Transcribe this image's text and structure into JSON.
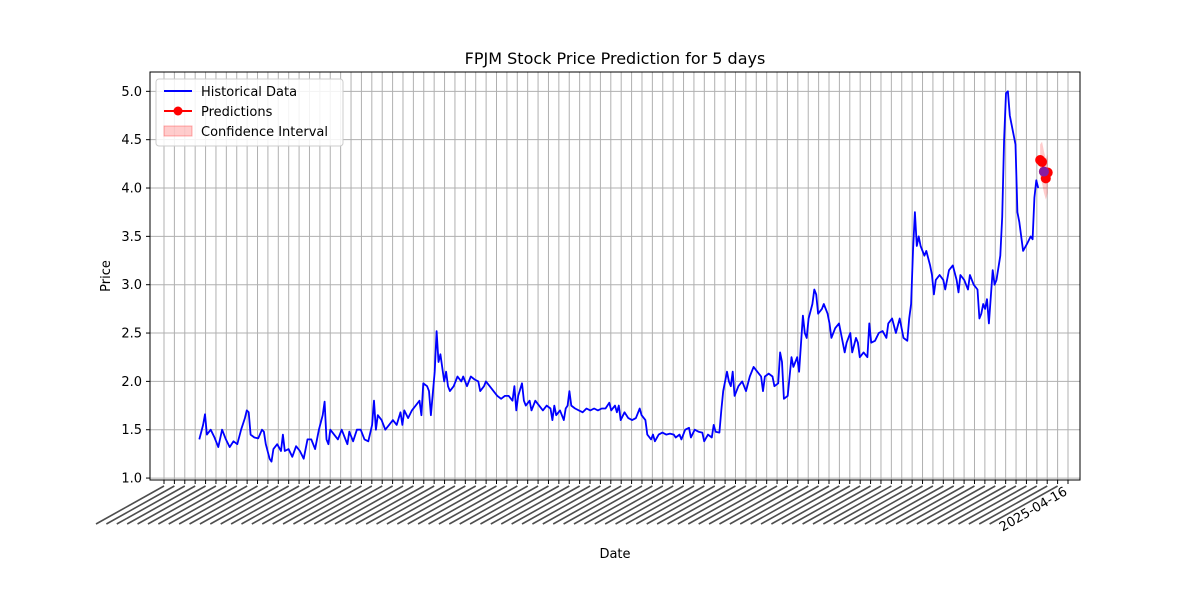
{
  "chart_data": {
    "type": "line",
    "title": "FPJM Stock Price Prediction for 5 days",
    "xlabel": "Date",
    "ylabel": "Price",
    "ylim": [
      0.98,
      5.2
    ],
    "yticks": [
      1.0,
      1.5,
      2.0,
      2.5,
      3.0,
      3.5,
      4.0,
      4.5,
      5.0
    ],
    "ytick_labels": [
      "1.0",
      "1.5",
      "2.0",
      "2.5",
      "3.0",
      "3.5",
      "4.0",
      "4.5",
      "5.0"
    ],
    "x_tick_count": 88,
    "x_tick_labels_visible": [
      "2025-04-16"
    ],
    "grid": true,
    "legend_position": "upper-left",
    "legend": [
      {
        "label": "Historical Data",
        "kind": "line",
        "color": "#0000ff"
      },
      {
        "label": "Predictions",
        "kind": "line-marker",
        "color": "#ff0000"
      },
      {
        "label": "Confidence Interval",
        "kind": "band",
        "color": "#ff0000"
      }
    ],
    "series": [
      {
        "name": "Historical Data",
        "color": "#0000ff",
        "values": [
          [
            0,
            1.4
          ],
          [
            2,
            1.55
          ],
          [
            3,
            1.66
          ],
          [
            4,
            1.45
          ],
          [
            6,
            1.5
          ],
          [
            8,
            1.42
          ],
          [
            10,
            1.32
          ],
          [
            12,
            1.5
          ],
          [
            14,
            1.4
          ],
          [
            16,
            1.32
          ],
          [
            18,
            1.38
          ],
          [
            20,
            1.35
          ],
          [
            22,
            1.5
          ],
          [
            24,
            1.62
          ],
          [
            25,
            1.7
          ],
          [
            26,
            1.68
          ],
          [
            27,
            1.45
          ],
          [
            29,
            1.42
          ],
          [
            31,
            1.41
          ],
          [
            33,
            1.5
          ],
          [
            34,
            1.48
          ],
          [
            35,
            1.35
          ],
          [
            37,
            1.2
          ],
          [
            38,
            1.17
          ],
          [
            39,
            1.3
          ],
          [
            41,
            1.35
          ],
          [
            43,
            1.28
          ],
          [
            44,
            1.45
          ],
          [
            45,
            1.28
          ],
          [
            47,
            1.3
          ],
          [
            49,
            1.22
          ],
          [
            51,
            1.33
          ],
          [
            53,
            1.28
          ],
          [
            55,
            1.2
          ],
          [
            57,
            1.4
          ],
          [
            59,
            1.4
          ],
          [
            61,
            1.3
          ],
          [
            63,
            1.5
          ],
          [
            65,
            1.65
          ],
          [
            66,
            1.79
          ],
          [
            67,
            1.4
          ],
          [
            68,
            1.35
          ],
          [
            69,
            1.5
          ],
          [
            71,
            1.45
          ],
          [
            73,
            1.4
          ],
          [
            75,
            1.5
          ],
          [
            77,
            1.4
          ],
          [
            78,
            1.35
          ],
          [
            79,
            1.48
          ],
          [
            81,
            1.38
          ],
          [
            83,
            1.5
          ],
          [
            85,
            1.5
          ],
          [
            87,
            1.4
          ],
          [
            89,
            1.38
          ],
          [
            91,
            1.55
          ],
          [
            92,
            1.8
          ],
          [
            93,
            1.5
          ],
          [
            94,
            1.65
          ],
          [
            96,
            1.6
          ],
          [
            98,
            1.5
          ],
          [
            100,
            1.55
          ],
          [
            102,
            1.6
          ],
          [
            104,
            1.55
          ],
          [
            106,
            1.68
          ],
          [
            107,
            1.55
          ],
          [
            108,
            1.7
          ],
          [
            110,
            1.62
          ],
          [
            112,
            1.7
          ],
          [
            114,
            1.75
          ],
          [
            116,
            1.8
          ],
          [
            117,
            1.65
          ],
          [
            118,
            1.98
          ],
          [
            120,
            1.95
          ],
          [
            121,
            1.9
          ],
          [
            122,
            1.65
          ],
          [
            124,
            2.1
          ],
          [
            125,
            2.52
          ],
          [
            126,
            2.2
          ],
          [
            127,
            2.28
          ],
          [
            129,
            2.0
          ],
          [
            130,
            2.1
          ],
          [
            131,
            1.95
          ],
          [
            132,
            1.9
          ],
          [
            134,
            1.95
          ],
          [
            136,
            2.05
          ],
          [
            138,
            2.0
          ],
          [
            139,
            2.05
          ],
          [
            141,
            1.95
          ],
          [
            143,
            2.05
          ],
          [
            145,
            2.02
          ],
          [
            147,
            2.0
          ],
          [
            148,
            1.9
          ],
          [
            150,
            1.95
          ],
          [
            151,
            2.0
          ],
          [
            153,
            1.95
          ],
          [
            155,
            1.9
          ],
          [
            157,
            1.85
          ],
          [
            159,
            1.82
          ],
          [
            161,
            1.85
          ],
          [
            163,
            1.85
          ],
          [
            165,
            1.8
          ],
          [
            166,
            1.95
          ],
          [
            167,
            1.7
          ],
          [
            168,
            1.85
          ],
          [
            170,
            1.98
          ],
          [
            171,
            1.8
          ],
          [
            172,
            1.75
          ],
          [
            174,
            1.8
          ],
          [
            175,
            1.7
          ],
          [
            177,
            1.8
          ],
          [
            179,
            1.75
          ],
          [
            181,
            1.7
          ],
          [
            183,
            1.75
          ],
          [
            185,
            1.72
          ],
          [
            186,
            1.6
          ],
          [
            187,
            1.75
          ],
          [
            188,
            1.65
          ],
          [
            190,
            1.7
          ],
          [
            192,
            1.6
          ],
          [
            193,
            1.72
          ],
          [
            194,
            1.75
          ],
          [
            195,
            1.9
          ],
          [
            196,
            1.75
          ],
          [
            198,
            1.72
          ],
          [
            200,
            1.7
          ],
          [
            202,
            1.68
          ],
          [
            204,
            1.72
          ],
          [
            206,
            1.7
          ],
          [
            208,
            1.72
          ],
          [
            210,
            1.7
          ],
          [
            212,
            1.72
          ],
          [
            214,
            1.72
          ],
          [
            216,
            1.78
          ],
          [
            217,
            1.7
          ],
          [
            219,
            1.75
          ],
          [
            220,
            1.68
          ],
          [
            221,
            1.75
          ],
          [
            222,
            1.6
          ],
          [
            224,
            1.68
          ],
          [
            226,
            1.62
          ],
          [
            228,
            1.6
          ],
          [
            230,
            1.62
          ],
          [
            232,
            1.72
          ],
          [
            233,
            1.65
          ],
          [
            235,
            1.6
          ],
          [
            236,
            1.45
          ],
          [
            238,
            1.4
          ],
          [
            239,
            1.45
          ],
          [
            240,
            1.38
          ],
          [
            242,
            1.45
          ],
          [
            244,
            1.47
          ],
          [
            246,
            1.45
          ],
          [
            248,
            1.46
          ],
          [
            250,
            1.45
          ],
          [
            251,
            1.42
          ],
          [
            253,
            1.45
          ],
          [
            254,
            1.4
          ],
          [
            256,
            1.5
          ],
          [
            258,
            1.52
          ],
          [
            259,
            1.42
          ],
          [
            261,
            1.5
          ],
          [
            263,
            1.48
          ],
          [
            265,
            1.47
          ],
          [
            266,
            1.38
          ],
          [
            268,
            1.45
          ],
          [
            270,
            1.42
          ],
          [
            271,
            1.55
          ],
          [
            272,
            1.48
          ],
          [
            274,
            1.47
          ],
          [
            275,
            1.7
          ],
          [
            276,
            1.9
          ],
          [
            278,
            2.1
          ],
          [
            279,
            2.0
          ],
          [
            280,
            1.95
          ],
          [
            281,
            2.1
          ],
          [
            282,
            1.85
          ],
          [
            284,
            1.95
          ],
          [
            286,
            2.0
          ],
          [
            288,
            1.9
          ],
          [
            290,
            2.05
          ],
          [
            292,
            2.15
          ],
          [
            294,
            2.1
          ],
          [
            296,
            2.05
          ],
          [
            297,
            1.9
          ],
          [
            298,
            2.05
          ],
          [
            300,
            2.08
          ],
          [
            302,
            2.05
          ],
          [
            303,
            1.95
          ],
          [
            305,
            1.98
          ],
          [
            306,
            2.3
          ],
          [
            307,
            2.2
          ],
          [
            308,
            1.82
          ],
          [
            310,
            1.85
          ],
          [
            312,
            2.25
          ],
          [
            313,
            2.15
          ],
          [
            315,
            2.25
          ],
          [
            316,
            2.1
          ],
          [
            318,
            2.68
          ],
          [
            319,
            2.5
          ],
          [
            320,
            2.45
          ],
          [
            321,
            2.65
          ],
          [
            323,
            2.8
          ],
          [
            324,
            2.95
          ],
          [
            325,
            2.9
          ],
          [
            326,
            2.7
          ],
          [
            328,
            2.75
          ],
          [
            329,
            2.8
          ],
          [
            331,
            2.7
          ],
          [
            332,
            2.6
          ],
          [
            333,
            2.45
          ],
          [
            335,
            2.55
          ],
          [
            337,
            2.6
          ],
          [
            338,
            2.5
          ],
          [
            340,
            2.3
          ],
          [
            341,
            2.4
          ],
          [
            343,
            2.5
          ],
          [
            344,
            2.3
          ],
          [
            346,
            2.45
          ],
          [
            347,
            2.4
          ],
          [
            348,
            2.25
          ],
          [
            350,
            2.3
          ],
          [
            352,
            2.25
          ],
          [
            353,
            2.6
          ],
          [
            354,
            2.4
          ],
          [
            356,
            2.42
          ],
          [
            358,
            2.5
          ],
          [
            360,
            2.52
          ],
          [
            362,
            2.45
          ],
          [
            363,
            2.6
          ],
          [
            365,
            2.65
          ],
          [
            367,
            2.5
          ],
          [
            369,
            2.65
          ],
          [
            371,
            2.45
          ],
          [
            373,
            2.42
          ],
          [
            374,
            2.65
          ],
          [
            375,
            2.8
          ],
          [
            376,
            3.35
          ],
          [
            377,
            3.75
          ],
          [
            378,
            3.4
          ],
          [
            379,
            3.5
          ],
          [
            380,
            3.4
          ],
          [
            382,
            3.3
          ],
          [
            383,
            3.35
          ],
          [
            385,
            3.2
          ],
          [
            386,
            3.1
          ],
          [
            387,
            2.9
          ],
          [
            388,
            3.05
          ],
          [
            390,
            3.1
          ],
          [
            392,
            3.05
          ],
          [
            393,
            2.95
          ],
          [
            395,
            3.15
          ],
          [
            397,
            3.2
          ],
          [
            399,
            3.05
          ],
          [
            400,
            2.92
          ],
          [
            401,
            3.1
          ],
          [
            403,
            3.05
          ],
          [
            405,
            2.95
          ],
          [
            406,
            3.1
          ],
          [
            408,
            3.0
          ],
          [
            410,
            2.95
          ],
          [
            411,
            2.65
          ],
          [
            412,
            2.7
          ],
          [
            413,
            2.8
          ],
          [
            414,
            2.75
          ],
          [
            415,
            2.85
          ],
          [
            416,
            2.6
          ],
          [
            418,
            3.15
          ],
          [
            419,
            3.0
          ],
          [
            420,
            3.05
          ],
          [
            422,
            3.3
          ],
          [
            423,
            3.7
          ],
          [
            424,
            4.5
          ],
          [
            425,
            4.98
          ],
          [
            426,
            5.0
          ],
          [
            427,
            4.75
          ],
          [
            428,
            4.65
          ],
          [
            430,
            4.45
          ],
          [
            431,
            3.75
          ],
          [
            432,
            3.65
          ],
          [
            434,
            3.35
          ],
          [
            436,
            3.42
          ],
          [
            438,
            3.5
          ],
          [
            439,
            3.47
          ],
          [
            440,
            3.9
          ],
          [
            441,
            4.08
          ],
          [
            442,
            4.0
          ]
        ]
      }
    ],
    "predictions": {
      "name": "Predictions",
      "color": "#ff0000",
      "values": [
        [
          443,
          4.29
        ],
        [
          444,
          4.27
        ],
        [
          445,
          4.17
        ],
        [
          446,
          4.1
        ],
        [
          447,
          4.16
        ]
      ],
      "ci_lower": [
        4.1,
        4.05,
        3.95,
        3.88,
        3.95
      ],
      "ci_upper": [
        4.45,
        4.48,
        4.38,
        4.3,
        4.35
      ]
    }
  }
}
